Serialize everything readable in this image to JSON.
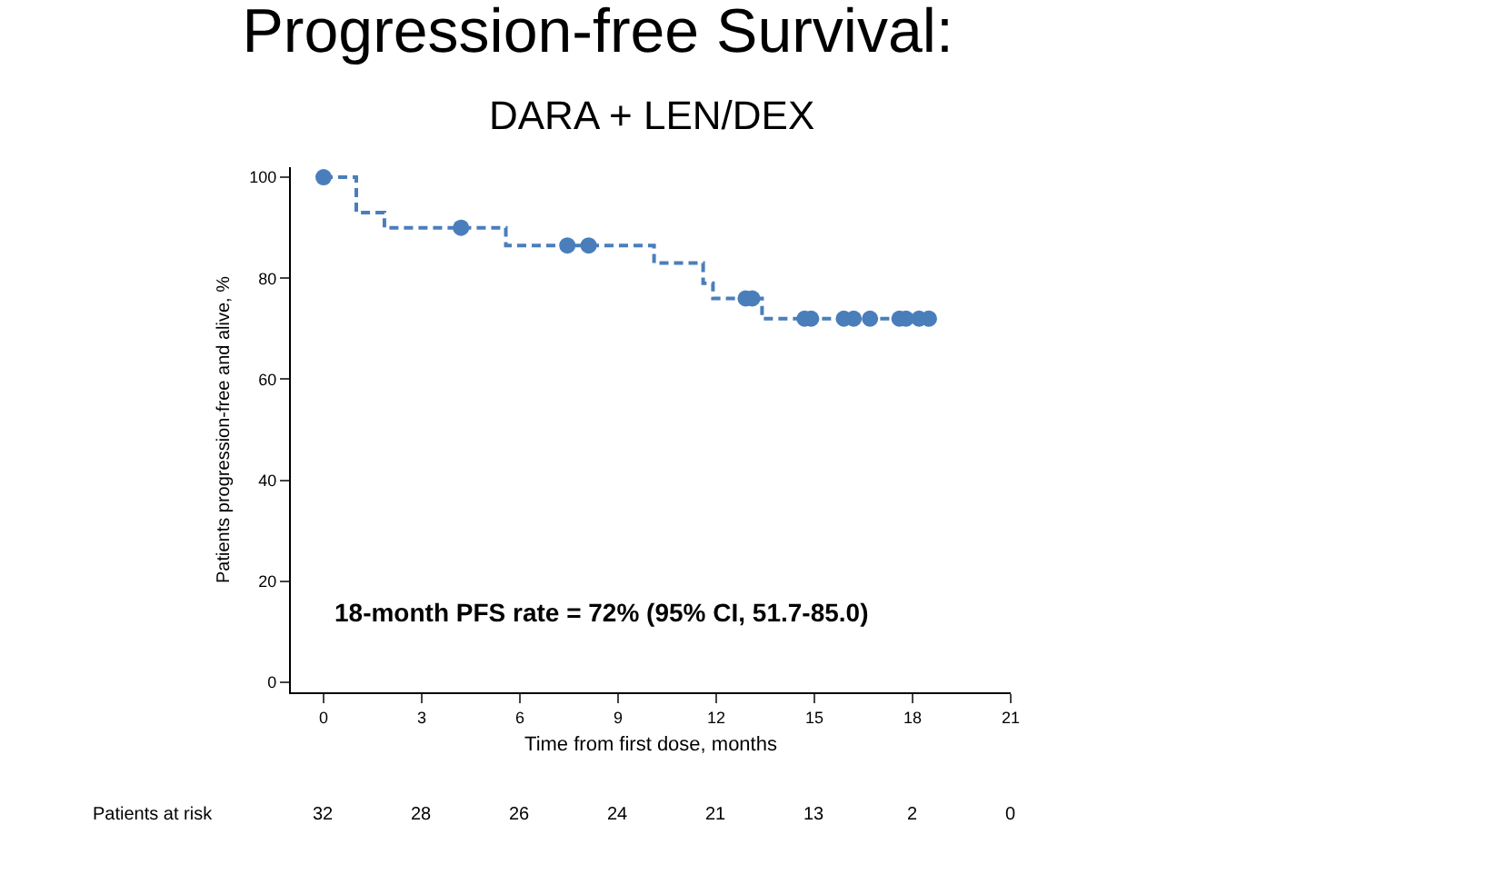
{
  "chart_data": {
    "type": "step",
    "title": "Progression-free Survival:",
    "subtitle": "DARA + LEN/DEX",
    "xlabel": "Time from first dose, months",
    "ylabel": "Patients progression-free and alive, %",
    "xlim": [
      -1,
      21
    ],
    "xticks": [
      0,
      3,
      6,
      9,
      12,
      15,
      18,
      21
    ],
    "ylim": [
      -2,
      102
    ],
    "yticks": [
      0,
      20,
      40,
      60,
      80,
      100
    ],
    "grid": false,
    "line_style": "dashed",
    "series": [
      {
        "color": "#4a7ebb",
        "x": [
          0,
          1.0,
          1.86,
          5.57,
          10.1,
          11.6,
          11.9,
          13.4,
          18.5
        ],
        "values": [
          100,
          93,
          90,
          86.5,
          83,
          79,
          76,
          72,
          72
        ]
      },
      {
        "type": "scatter",
        "color": "#4a7ebb",
        "x": [
          0,
          4.2,
          7.45,
          8.1,
          12.9,
          13.1,
          14.7,
          14.9,
          15.9,
          16.2,
          16.7,
          17.6,
          17.8,
          18.2,
          18.5
        ],
        "values": [
          100,
          90,
          86.5,
          86.5,
          76,
          76,
          72,
          72,
          72,
          72,
          72,
          72,
          72,
          72,
          72
        ]
      }
    ],
    "annotations": [
      "18-month PFS rate = 72% (95% CI, 51.7-85.0)",
      "Patients at risk",
      "32",
      "28",
      "26",
      "24",
      "21",
      "13",
      "2",
      "0"
    ]
  }
}
